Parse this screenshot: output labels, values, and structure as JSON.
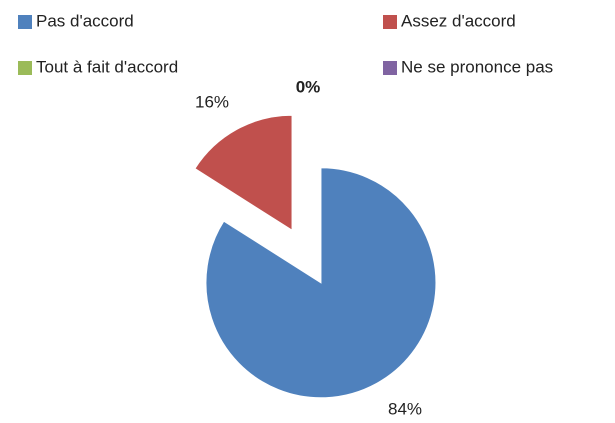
{
  "chart_data": {
    "type": "pie",
    "categories": [
      "Pas d'accord",
      "Assez d'accord",
      "Tout à fait d'accord",
      "Ne se prononce pas"
    ],
    "values": [
      84,
      16,
      0,
      0
    ],
    "value_labels": [
      "84%",
      "16%",
      "0%",
      null
    ],
    "colors": [
      "#4f81bd",
      "#c0504d",
      "#9bbb59",
      "#8064a2"
    ],
    "legend": "top"
  }
}
